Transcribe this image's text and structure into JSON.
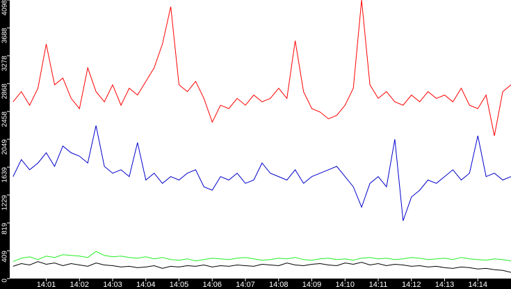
{
  "chart_data": {
    "type": "line",
    "x": [
      840,
      840.25,
      840.5,
      840.75,
      841,
      841.25,
      841.5,
      841.75,
      842,
      842.25,
      842.5,
      842.75,
      843,
      843.25,
      843.5,
      843.75,
      844,
      844.25,
      844.5,
      844.75,
      845,
      845.25,
      845.5,
      845.75,
      846,
      846.25,
      846.5,
      846.75,
      847,
      847.25,
      847.5,
      847.75,
      848,
      848.25,
      848.5,
      848.75,
      849,
      849.25,
      849.5,
      849.75,
      850,
      850.25,
      850.5,
      850.75,
      851,
      851.25,
      851.5,
      851.75,
      852,
      852.25,
      852.5,
      852.75,
      853,
      853.25,
      853.5,
      853.75,
      854,
      854.25,
      854.5,
      854.75,
      855
    ],
    "series": [
      {
        "color": "#ff0000",
        "values": [
          2600,
          2750,
          2550,
          2800,
          3450,
          2850,
          2950,
          2650,
          2500,
          3100,
          2750,
          2600,
          2850,
          2550,
          2800,
          2700,
          2900,
          3100,
          3450,
          4000,
          2850,
          2750,
          2900,
          2650,
          2300,
          2550,
          2500,
          2650,
          2550,
          2700,
          2600,
          2650,
          2800,
          2650,
          3500,
          2750,
          2500,
          2450,
          2350,
          2400,
          2550,
          2800,
          4098,
          2850,
          2650,
          2750,
          2600,
          2550,
          2700,
          2600,
          2750,
          2650,
          2700,
          2600,
          2800,
          2550,
          2500,
          2700,
          2100,
          2750,
          2850
        ]
      },
      {
        "color": "#0000cc",
        "values": [
          1500,
          1750,
          1600,
          1700,
          1850,
          1650,
          1950,
          1850,
          1800,
          1700,
          2250,
          1650,
          1550,
          1600,
          1500,
          2000,
          1450,
          1550,
          1400,
          1500,
          1450,
          1550,
          1600,
          1350,
          1300,
          1500,
          1450,
          1550,
          1400,
          1450,
          1700,
          1550,
          1500,
          1450,
          1600,
          1400,
          1500,
          1550,
          1600,
          1650,
          1500,
          1350,
          1050,
          1400,
          1500,
          1350,
          2050,
          850,
          1200,
          1300,
          1450,
          1400,
          1500,
          1600,
          1450,
          1550,
          2100,
          1500,
          1550,
          1450,
          1500
        ]
      },
      {
        "color": "#22ee22",
        "values": [
          250,
          300,
          320,
          280,
          330,
          310,
          350,
          340,
          330,
          310,
          400,
          340,
          320,
          330,
          310,
          300,
          320,
          290,
          310,
          280,
          270,
          290,
          260,
          280,
          300,
          290,
          280,
          300,
          310,
          290,
          270,
          280,
          300,
          290,
          310,
          280,
          270,
          290,
          300,
          280,
          290,
          270,
          300,
          310,
          290,
          300,
          280,
          290,
          310,
          300,
          280,
          290,
          300,
          280,
          310,
          290,
          280,
          270,
          290,
          280,
          260
        ]
      },
      {
        "color": "#000000",
        "values": [
          180,
          220,
          200,
          250,
          210,
          230,
          190,
          220,
          200,
          180,
          230,
          200,
          190,
          170,
          180,
          160,
          170,
          190,
          150,
          180,
          170,
          190,
          180,
          200,
          170,
          190,
          180,
          200,
          190,
          180,
          210,
          200,
          190,
          230,
          200,
          190,
          210,
          220,
          200,
          190,
          230,
          210,
          240,
          200,
          220,
          190,
          210,
          200,
          180,
          190,
          170,
          180,
          160,
          150,
          170,
          160,
          140,
          150,
          130,
          120,
          90
        ]
      }
    ],
    "xlim": [
      839.9,
      855
    ],
    "xticks": [
      {
        "value": 841,
        "label": "14:01"
      },
      {
        "value": 842,
        "label": "14:02"
      },
      {
        "value": 843,
        "label": "14:03"
      },
      {
        "value": 844,
        "label": "14:04"
      },
      {
        "value": 845,
        "label": "14:05"
      },
      {
        "value": 846,
        "label": "14:06"
      },
      {
        "value": 847,
        "label": "14:07"
      },
      {
        "value": 848,
        "label": "14:08"
      },
      {
        "value": 849,
        "label": "14:09"
      },
      {
        "value": 850,
        "label": "14:10"
      },
      {
        "value": 851,
        "label": "14:11"
      },
      {
        "value": 852,
        "label": "14:12"
      },
      {
        "value": 853,
        "label": "14:13"
      },
      {
        "value": 854,
        "label": "14:14"
      }
    ],
    "ylim": [
      0,
      4098
    ],
    "yticks": [
      0,
      409,
      819,
      1229,
      1639,
      2049,
      2458,
      2868,
      3278,
      3688,
      4098
    ],
    "grid": false
  }
}
